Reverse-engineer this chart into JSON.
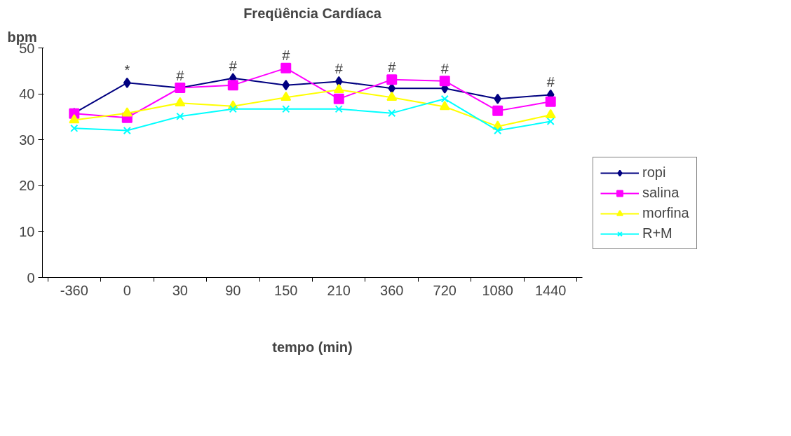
{
  "chart_data": {
    "type": "line",
    "title": "Freqüência Cardíaca",
    "ylabel": "bpm",
    "xlabel": "tempo (min)",
    "categories": [
      "-360",
      "0",
      "30",
      "90",
      "150",
      "210",
      "360",
      "720",
      "1080",
      "1440"
    ],
    "series": [
      {
        "name": "ropi",
        "color": "#000080",
        "marker": "diamond",
        "values": [
          35.8,
          42.4,
          41.3,
          43.4,
          41.9,
          42.7,
          41.2,
          41.2,
          38.9,
          39.8
        ]
      },
      {
        "name": "salina",
        "color": "#ff00ff",
        "marker": "square",
        "values": [
          35.7,
          34.8,
          41.3,
          41.9,
          45.6,
          38.9,
          43.1,
          42.8,
          36.3,
          38.3
        ]
      },
      {
        "name": "morfina",
        "color": "#ffff00",
        "marker": "triangle",
        "values": [
          34.3,
          35.8,
          38.0,
          37.3,
          39.2,
          40.9,
          39.2,
          37.2,
          32.9,
          35.4
        ]
      },
      {
        "name": "R+M",
        "color": "#00ffff",
        "marker": "cross",
        "values": [
          32.5,
          32.0,
          35.1,
          36.7,
          36.7,
          36.7,
          35.8,
          38.9,
          32.0,
          34.0
        ]
      }
    ],
    "ylim": [
      0,
      50
    ],
    "yticks": [
      0,
      10,
      20,
      30,
      40,
      50
    ],
    "grid": false,
    "legend": "right",
    "annotations": [
      {
        "text": "*",
        "x": "0",
        "y": 42.4
      },
      {
        "text": "#",
        "x": "30",
        "y": 41.3
      },
      {
        "text": "#",
        "x": "90",
        "y": 43.4
      },
      {
        "text": "#",
        "x": "150",
        "y": 45.6
      },
      {
        "text": "#",
        "x": "210",
        "y": 42.7
      },
      {
        "text": "#",
        "x": "360",
        "y": 43.1
      },
      {
        "text": "#",
        "x": "720",
        "y": 42.8
      },
      {
        "text": "#",
        "x": "1440",
        "y": 39.8
      }
    ]
  }
}
